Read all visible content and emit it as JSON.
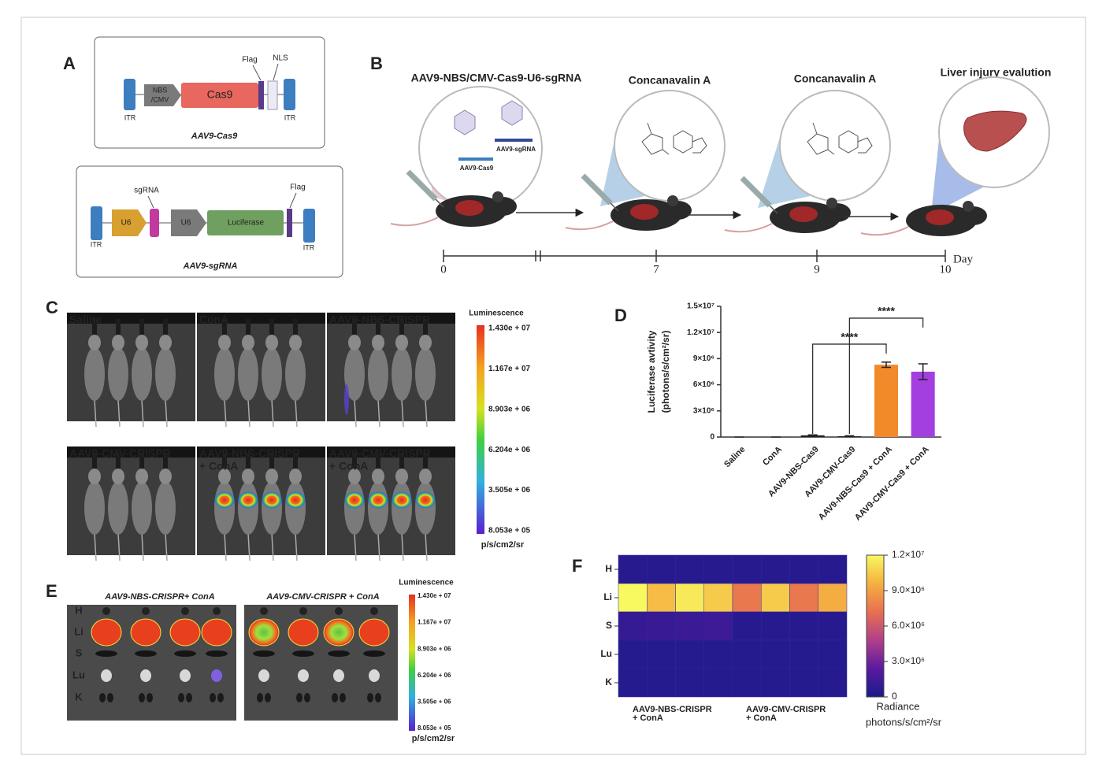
{
  "panel_a": {
    "label": "A",
    "cas9": {
      "itr_left": "ITR",
      "promoter": [
        "NBS",
        "/CMV"
      ],
      "gene": "Cas9",
      "flag": "Flag",
      "nls": "NLS",
      "itr_right": "ITR",
      "name": "AAV9-Cas9"
    },
    "sgrna": {
      "itr_left": "ITR",
      "promoter1": "U6",
      "sgrna": "sgRNA",
      "promoter2": "U6",
      "gene": "Luciferase",
      "flag": "Flag",
      "itr_right": "ITR",
      "name": "AAV9-sgRNA"
    }
  },
  "panel_b": {
    "label": "B",
    "steps": [
      "AAV9-NBS/CMV-Cas9-U6-sgRNA",
      "Concanavalin A",
      "Concanavalin A",
      "Liver injury evalution"
    ],
    "vector_labels": [
      "AAV9-sgRNA",
      "AAV9-Cas9"
    ],
    "days": [
      0,
      7,
      9,
      10
    ],
    "day_unit": "Day"
  },
  "panel_c": {
    "label": "C",
    "groups": [
      [
        "Saline"
      ],
      [
        "ConA"
      ],
      [
        "AAV9-NBS-CRISPR"
      ],
      [
        "AAV9-CMV-CRISPR"
      ],
      [
        "AAV9-NBS-CRISPR",
        "+ ConA"
      ],
      [
        "AAV9-CMV-CRISPR",
        "+ ConA"
      ]
    ],
    "colorbar_title": "Luminescence",
    "colorbar_ticks": [
      "1.430e + 07",
      "1.167e + 07",
      "8.903e + 06",
      "6.204e + 06",
      "3.505e + 06",
      "8.053e + 05"
    ],
    "colorbar_unit": "p/s/cm2/sr"
  },
  "panel_e": {
    "label": "E",
    "groups": [
      "AAV9-NBS-CRISPR+ ConA",
      "AAV9-CMV-CRISPR + ConA"
    ],
    "organs": [
      "H",
      "Li",
      "S",
      "Lu",
      "K"
    ],
    "colorbar_title": "Luminescence",
    "colorbar_ticks": [
      "1.430e + 07",
      "1.167e + 07",
      "8.903e + 06",
      "6.204e + 06",
      "3.505e + 06",
      "8.053e + 05"
    ],
    "colorbar_unit": "p/s/cm2/sr"
  },
  "chart_data": [
    {
      "type": "bar",
      "panel_label": "D",
      "ylabel": [
        "Luciferase avtivity",
        "(photons/s/cm²/sr)"
      ],
      "categories": [
        "Saline",
        "ConA",
        "AAV9-NBS-Cas9",
        "AAV9-CMV-Cas9",
        "AAV9-NBS-Cas9 + ConA",
        "AAV9-CMV-Cas9 + ConA"
      ],
      "values": [
        0,
        0,
        200000,
        100000,
        8300000,
        7500000
      ],
      "errors": [
        0,
        0,
        50000,
        50000,
        300000,
        900000
      ],
      "colors": [
        "#222222",
        "#222222",
        "#222222",
        "#222222",
        "#f28a2a",
        "#a33fe0"
      ],
      "ylim": [
        0,
        15000000
      ],
      "yticks": [
        0,
        {
          "value": 3000000,
          "label": "3×10⁶"
        },
        {
          "value": 6000000,
          "label": "6×10⁶"
        },
        {
          "value": 9000000,
          "label": "9×10⁶"
        },
        {
          "value": 12000000,
          "label": "1.2×10⁷"
        },
        {
          "value": 15000000,
          "label": "1.5×10⁷"
        }
      ],
      "annotations": [
        "****",
        "****"
      ]
    },
    {
      "type": "heatmap",
      "panel_label": "F",
      "rows": [
        "H",
        "Li",
        "S",
        "Lu",
        "K"
      ],
      "x_groups": [
        [
          "AAV9-NBS-CRISPR",
          "+ ConA"
        ],
        [
          "AAV9-CMV-CRISPR",
          "+ ConA"
        ]
      ],
      "values": [
        [
          500000,
          500000,
          500000,
          500000,
          500000,
          500000,
          500000,
          500000
        ],
        [
          12000000,
          10000000,
          11500000,
          10500000,
          7500000,
          10500000,
          7500000,
          9500000
        ],
        [
          1000000,
          1100000,
          1200000,
          1300000,
          500000,
          500000,
          500000,
          500000
        ],
        [
          400000,
          400000,
          400000,
          400000,
          400000,
          400000,
          400000,
          400000
        ],
        [
          400000,
          400000,
          400000,
          400000,
          400000,
          400000,
          400000,
          400000
        ]
      ],
      "colormap": [
        "#1a1a8a",
        "#5a1aa0",
        "#b0408a",
        "#e87050",
        "#f5b040",
        "#f8f860"
      ],
      "clim": [
        0,
        12000000
      ],
      "cticks": [
        0,
        {
          "value": 3000000,
          "label": "3.0×10⁶"
        },
        {
          "value": 6000000,
          "label": "6.0×10⁶"
        },
        {
          "value": 9000000,
          "label": "9.0×10⁶"
        },
        {
          "value": 12000000,
          "label": "1.2×10⁷"
        }
      ],
      "colorbar_label": [
        "Radiance",
        "photons/s/cm²/sr"
      ]
    }
  ]
}
